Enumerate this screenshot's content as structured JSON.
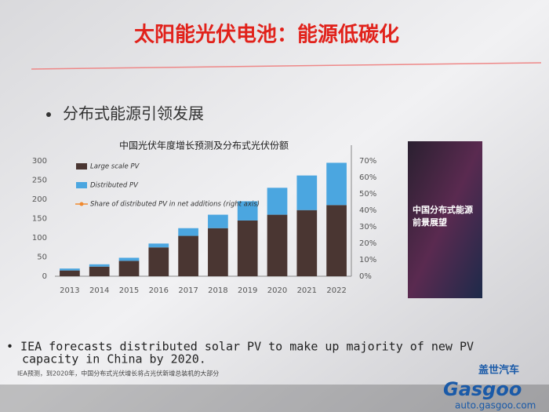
{
  "slide": {
    "title": "太阳能光伏电池：能源低碳化",
    "bullet": "分布式能源引领发展",
    "note_en": [
      "IEA forecasts distributed solar PV to make up majority of new PV",
      "capacity in China by 2020."
    ],
    "note_cn": "IEA预测，到2020年，中国分布式光伏增长将占光伏新增总装机的大部分",
    "book_title": [
      "中国分布式能源",
      "前景展望"
    ],
    "watermark": [
      "盖世汽车",
      "Gasgoo",
      "auto.gasgoo.com"
    ]
  },
  "chart_data": {
    "type": "bar",
    "stacked": true,
    "title": "中国光伏年度增长预测及分布式光伏份额",
    "categories": [
      "2013",
      "2014",
      "2015",
      "2016",
      "2017",
      "2018",
      "2019",
      "2020",
      "2021",
      "2022"
    ],
    "series": [
      {
        "name": "Large scale PV",
        "color": "#4a3632",
        "values": [
          15,
          25,
          40,
          75,
          105,
          125,
          145,
          160,
          172,
          185
        ]
      },
      {
        "name": "Distributed PV",
        "color": "#4ba6e0",
        "values": [
          5,
          6,
          8,
          10,
          20,
          35,
          50,
          70,
          90,
          110
        ]
      },
      {
        "name": "Share of distributed PV in net additions (right axis)",
        "color": "#f08a30",
        "axis": "y2",
        "values": [
          null,
          null,
          null,
          null,
          null,
          null,
          null,
          null,
          null,
          null
        ]
      }
    ],
    "ylim": [
      0,
      300
    ],
    "yticks": [
      0,
      50,
      100,
      150,
      200,
      250,
      300
    ],
    "y2lim": [
      0,
      70
    ],
    "y2ticks": [
      {
        "value": 0,
        "label": "0%"
      },
      {
        "value": 10,
        "label": "10%"
      },
      {
        "value": 20,
        "label": "20%"
      },
      {
        "value": 30,
        "label": "30%"
      },
      {
        "value": 40,
        "label": "40%"
      },
      {
        "value": 50,
        "label": "50%"
      },
      {
        "value": 60,
        "label": "60%"
      },
      {
        "value": 70,
        "label": "70%"
      }
    ],
    "grid": false,
    "legend": "upper left"
  }
}
